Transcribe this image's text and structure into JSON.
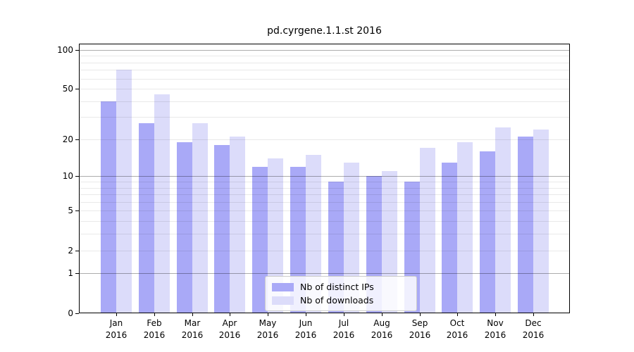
{
  "figure": {
    "title": "pd.cyrgene.1.1.st 2016"
  },
  "chart_data": {
    "type": "bar",
    "title": "pd.cyrgene.1.1.st 2016",
    "categories": [
      "Jan",
      "Feb",
      "Mar",
      "Apr",
      "May",
      "Jun",
      "Jul",
      "Aug",
      "Sep",
      "Oct",
      "Nov",
      "Dec"
    ],
    "category_year": "2016",
    "series": [
      {
        "name": "Nb of distinct IPs",
        "color": "#a9a9f7",
        "values": [
          40,
          27,
          19,
          18,
          12,
          12,
          9,
          10,
          9,
          13,
          16,
          21
        ]
      },
      {
        "name": "Nb of downloads",
        "color": "#dcdcfa",
        "values": [
          70,
          45,
          27,
          21,
          14,
          15,
          13,
          11,
          17,
          19,
          25,
          24
        ]
      }
    ],
    "xlabel": "",
    "ylabel": "",
    "yscale": "log10(value+1)",
    "ylim": [
      0,
      112
    ],
    "yticks": [
      100,
      50,
      20,
      10,
      5,
      2,
      1,
      0
    ],
    "minor_gridline_values": [
      2,
      3,
      4,
      5,
      6,
      7,
      8,
      9,
      20,
      30,
      40,
      50,
      60,
      70,
      80,
      90
    ],
    "decade_gridline_values": [
      1,
      10,
      100
    ],
    "grid": true,
    "legend_position": "lower center",
    "legend_entries": [
      "Nb of distinct IPs",
      "Nb of downloads"
    ]
  }
}
